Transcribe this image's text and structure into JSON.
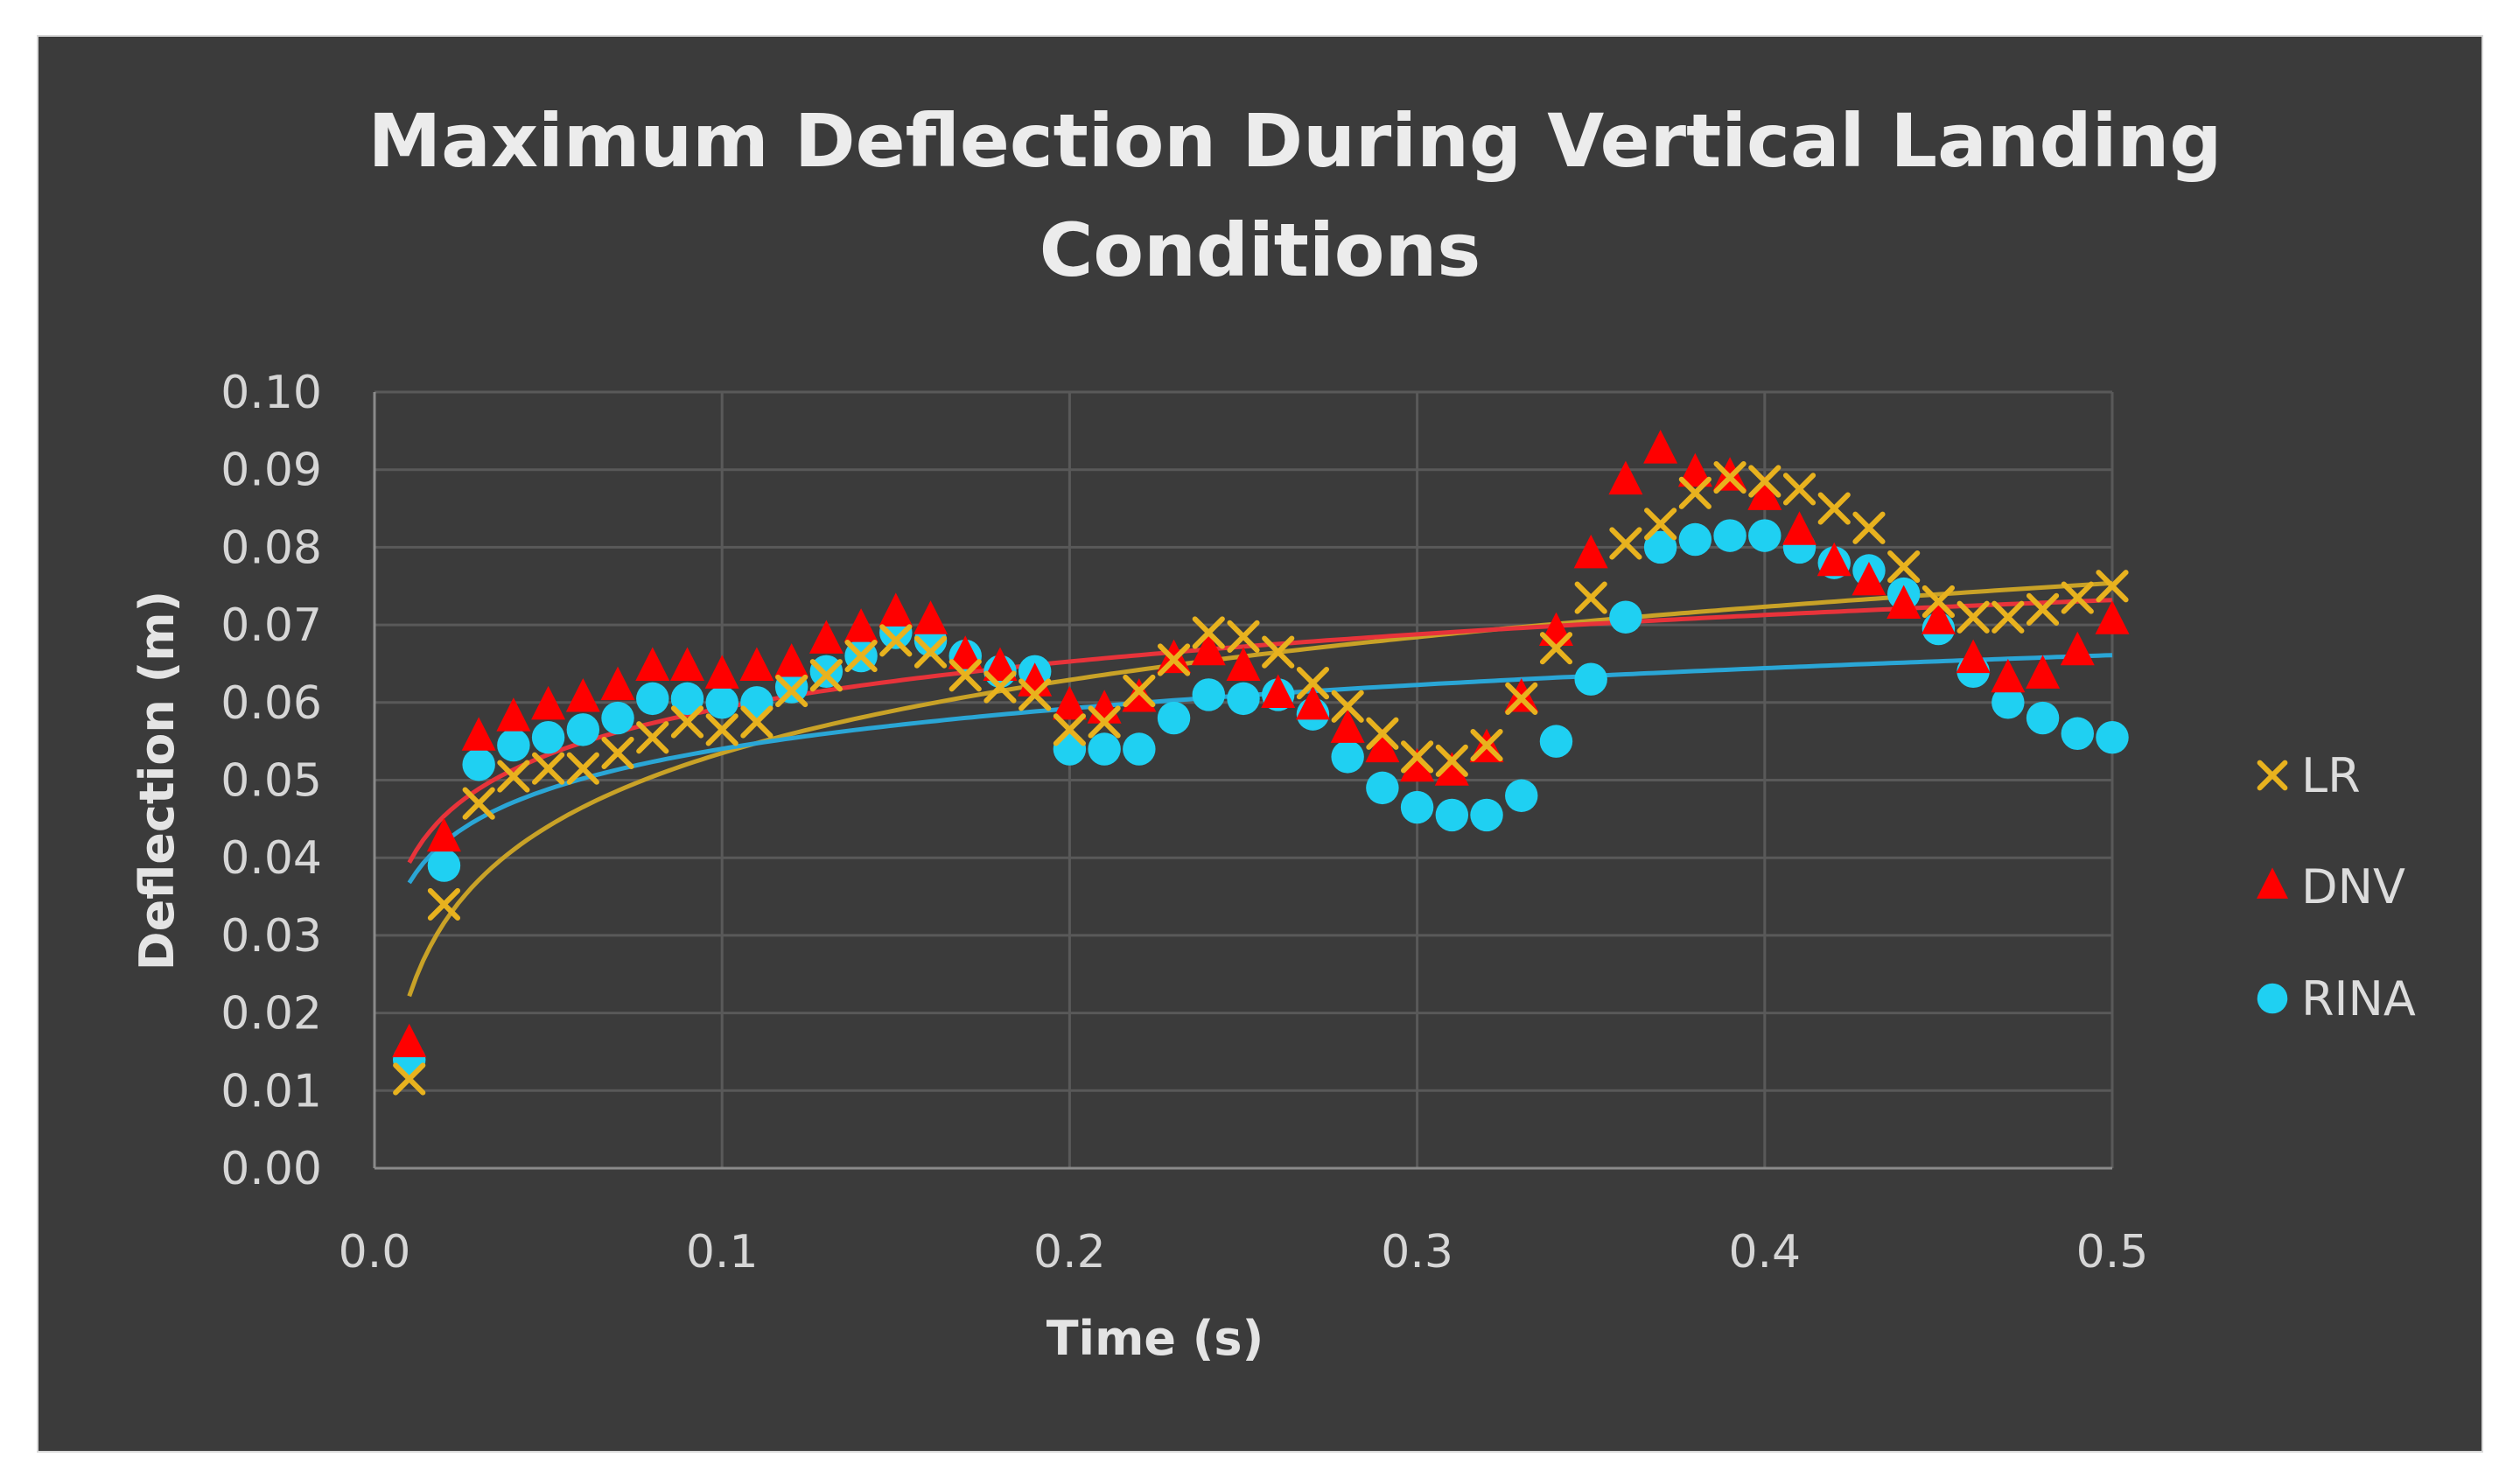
{
  "chart_data": {
    "type": "scatter",
    "title": "Maximum Deflection During Vertical Landing Conditions",
    "title_lines": [
      "Maximum Deflection During Vertical Landing",
      "Conditions"
    ],
    "xlabel": "Time (s)",
    "ylabel": "Deflection (m)",
    "xlim": [
      0.0,
      0.5
    ],
    "ylim": [
      0.0,
      0.1
    ],
    "x_ticks": [
      0.0,
      0.1,
      0.2,
      0.3,
      0.4,
      0.5
    ],
    "x_tick_labels": [
      "0.0",
      "0.1",
      "0.2",
      "0.3",
      "0.4",
      "0.5"
    ],
    "y_ticks": [
      0.0,
      0.01,
      0.02,
      0.03,
      0.04,
      0.05,
      0.06,
      0.07,
      0.08,
      0.09,
      0.1
    ],
    "y_tick_labels": [
      "0.00",
      "0.01",
      "0.02",
      "0.03",
      "0.04",
      "0.05",
      "0.06",
      "0.07",
      "0.08",
      "0.09",
      "0.10"
    ],
    "grid": true,
    "legend_position": "right",
    "x": [
      0.01,
      0.02,
      0.03,
      0.04,
      0.05,
      0.06,
      0.07,
      0.08,
      0.09,
      0.1,
      0.11,
      0.12,
      0.13,
      0.14,
      0.15,
      0.16,
      0.17,
      0.18,
      0.19,
      0.2,
      0.21,
      0.22,
      0.23,
      0.24,
      0.25,
      0.26,
      0.27,
      0.28,
      0.29,
      0.3,
      0.31,
      0.32,
      0.33,
      0.34,
      0.35,
      0.36,
      0.37,
      0.38,
      0.39,
      0.4,
      0.41,
      0.42,
      0.43,
      0.44,
      0.45,
      0.46,
      0.47,
      0.48,
      0.49,
      0.5
    ],
    "series": [
      {
        "name": "LR",
        "marker": "x",
        "color": "#e8b21e",
        "trend_color": "#c9a227",
        "values": [
          0.0115,
          0.034,
          0.047,
          0.0505,
          0.0515,
          0.0515,
          0.0535,
          0.0555,
          0.0575,
          0.0565,
          0.0575,
          0.0615,
          0.0635,
          0.066,
          0.068,
          0.0665,
          0.0635,
          0.062,
          0.061,
          0.0565,
          0.0575,
          0.0615,
          0.0655,
          0.069,
          0.0685,
          0.0665,
          0.0625,
          0.0595,
          0.056,
          0.053,
          0.0525,
          0.0545,
          0.0605,
          0.067,
          0.0735,
          0.0805,
          0.083,
          0.087,
          0.089,
          0.0885,
          0.0875,
          0.085,
          0.0825,
          0.0775,
          0.073,
          0.071,
          0.071,
          0.072,
          0.0735,
          0.075
        ]
      },
      {
        "name": "DNV",
        "marker": "triangle",
        "color": "#ff0000",
        "trend_color": "#e8333a",
        "values": [
          0.016,
          0.0425,
          0.0555,
          0.058,
          0.0595,
          0.0605,
          0.062,
          0.0645,
          0.0645,
          0.0635,
          0.0645,
          0.065,
          0.068,
          0.0695,
          0.0715,
          0.0705,
          0.066,
          0.0645,
          0.0625,
          0.0595,
          0.059,
          0.0605,
          0.0655,
          0.0665,
          0.0645,
          0.061,
          0.0595,
          0.0565,
          0.054,
          0.0515,
          0.051,
          0.054,
          0.0605,
          0.069,
          0.079,
          0.0885,
          0.0925,
          0.0895,
          0.089,
          0.0865,
          0.082,
          0.078,
          0.0755,
          0.0725,
          0.0705,
          0.0655,
          0.063,
          0.0635,
          0.0665,
          0.0705
        ]
      },
      {
        "name": "RINA",
        "marker": "circle",
        "color": "#1fd0f2",
        "trend_color": "#2aa6d6",
        "values": [
          0.014,
          0.039,
          0.052,
          0.0545,
          0.0555,
          0.0565,
          0.058,
          0.0605,
          0.0605,
          0.06,
          0.06,
          0.062,
          0.064,
          0.066,
          0.069,
          0.068,
          0.066,
          0.064,
          0.064,
          0.054,
          0.054,
          0.054,
          0.058,
          0.061,
          0.0605,
          0.061,
          0.0585,
          0.053,
          0.049,
          0.0465,
          0.0455,
          0.0455,
          0.048,
          0.055,
          0.063,
          0.071,
          0.08,
          0.081,
          0.0815,
          0.0815,
          0.08,
          0.078,
          0.077,
          0.074,
          0.0695,
          0.064,
          0.06,
          0.058,
          0.056,
          0.0555
        ]
      }
    ],
    "trendlines": [
      {
        "series": "LR",
        "type": "logarithmic",
        "a": 0.0848,
        "b": 0.0136
      },
      {
        "series": "DNV",
        "type": "logarithmic",
        "a": 0.0792,
        "b": 0.00865
      },
      {
        "series": "RINA",
        "type": "logarithmic",
        "a": 0.0713,
        "b": 0.0075
      }
    ]
  }
}
